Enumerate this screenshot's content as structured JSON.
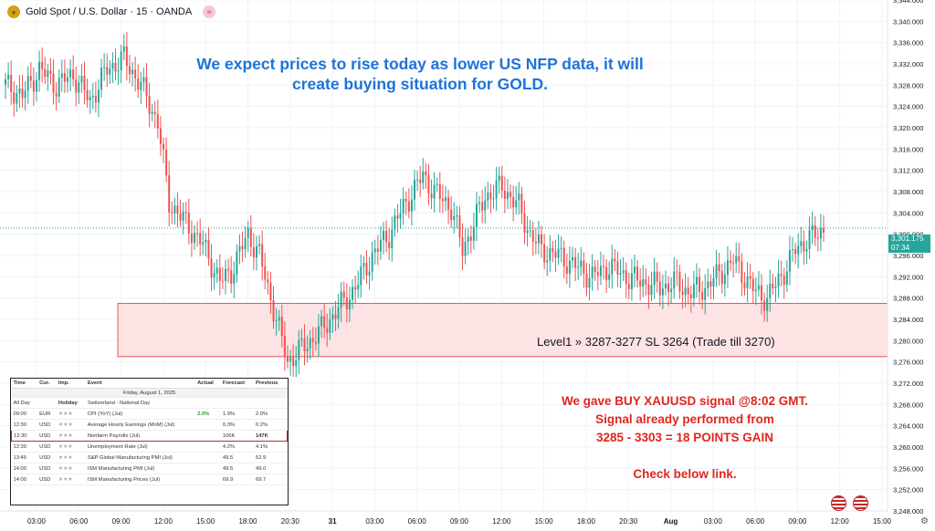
{
  "header": {
    "symbol_title": "Gold Spot / U.S. Dollar · 15 · OANDA",
    "coin_icon": "gold-coin-icon",
    "wave_icon": "wave-icon",
    "wave_glyph": "≈"
  },
  "annotations": {
    "headline_line1": "We expect prices to rise today as lower US NFP data, it will",
    "headline_line2": "create buying situation for GOLD.",
    "zone_label": "Level1 » 3287-3277 SL 3264 (Trade till 3270)",
    "signal_line1": "We gave BUY XAUUSD signal @8:02 GMT.",
    "signal_line2": "Signal already performed from",
    "signal_line3": "3285 - 3303 = 18 POINTS GAIN",
    "signal_line4": "Check below link.",
    "headline_color": "#1e73d8",
    "signal_color": "#e0261f"
  },
  "price_tag": {
    "price": "3,301.175",
    "countdown": "07:34",
    "color": "#26a69a"
  },
  "econ_calendar": {
    "headers": [
      "Time",
      "Cur.",
      "Imp.",
      "Event",
      "Actual",
      "Forecast",
      "Previous"
    ],
    "date": "Friday, August 1, 2025",
    "rows": [
      {
        "time": "All Day",
        "cur": "",
        "imp": "Holiday",
        "event": "Switzerland - National Day",
        "actual": "",
        "forecast": "",
        "previous": ""
      },
      {
        "time": "09:00",
        "cur": "EUR",
        "imp": "★★★",
        "event": "CPI (YoY) (Jul)",
        "actual": "2.0%",
        "forecast": "1.9%",
        "previous": "2.0%"
      },
      {
        "time": "12:30",
        "cur": "USD",
        "imp": "★★★",
        "event": "Average Hourly Earnings (MoM) (Jul)",
        "actual": "",
        "forecast": "0.3%",
        "previous": "0.2%"
      },
      {
        "time": "12:30",
        "cur": "USD",
        "imp": "★★★",
        "event": "Nonfarm Payrolls (Jul)",
        "actual": "",
        "forecast": "106K",
        "previous": "147K"
      },
      {
        "time": "12:30",
        "cur": "USD",
        "imp": "★★★",
        "event": "Unemployment Rate (Jul)",
        "actual": "",
        "forecast": "4.2%",
        "previous": "4.1%"
      },
      {
        "time": "13:45",
        "cur": "USD",
        "imp": "★★★",
        "event": "S&P Global Manufacturing PMI (Jul)",
        "actual": "",
        "forecast": "49.5",
        "previous": "52.9"
      },
      {
        "time": "14:00",
        "cur": "USD",
        "imp": "★★★",
        "event": "ISM Manufacturing PMI (Jul)",
        "actual": "",
        "forecast": "49.5",
        "previous": "49.0"
      },
      {
        "time": "14:00",
        "cur": "USD",
        "imp": "★★★",
        "event": "ISM Manufacturing Prices (Jul)",
        "actual": "",
        "forecast": "69.9",
        "previous": "69.7"
      }
    ],
    "highlight_row": 3
  },
  "icons": {
    "flag_icon": "us-flag-icon",
    "settings_icon": "gear-icon",
    "settings_glyph": "⚙"
  },
  "chart_data": {
    "type": "candlestick",
    "symbol": "XAUUSD",
    "timeframe": "15",
    "ylim": [
      3248,
      3344
    ],
    "y_ticks": [
      3248,
      3252,
      3256,
      3260,
      3264,
      3268,
      3272,
      3276,
      3280,
      3284,
      3288,
      3292,
      3296,
      3300,
      3304,
      3308,
      3312,
      3316,
      3320,
      3324,
      3328,
      3332,
      3336,
      3340,
      3344
    ],
    "x_ticks": [
      "03:00",
      "06:00",
      "09:00",
      "12:00",
      "15:00",
      "18:00",
      "20:30",
      "31",
      "03:00",
      "06:00",
      "09:00",
      "12:00",
      "15:00",
      "18:00",
      "20:30",
      "Aug",
      "03:00",
      "06:00",
      "09:00",
      "12:00",
      "15:00"
    ],
    "zone": {
      "top": 3287,
      "bottom": 3277,
      "label": "Level1 » 3287-3277 SL 3264 (Trade till 3270)"
    },
    "current_price": 3301.175,
    "colors": {
      "up": "#26a69a",
      "down": "#ef5350",
      "zone_fill": "#fde3e3",
      "zone_border": "#ef5350"
    },
    "anchors": [
      [
        0,
        3328
      ],
      [
        6,
        3326
      ],
      [
        12,
        3331
      ],
      [
        18,
        3328
      ],
      [
        24,
        3330
      ],
      [
        30,
        3325
      ],
      [
        36,
        3331
      ],
      [
        42,
        3333
      ],
      [
        48,
        3328
      ],
      [
        54,
        3321
      ],
      [
        58,
        3306
      ],
      [
        64,
        3302
      ],
      [
        70,
        3298
      ],
      [
        76,
        3291
      ],
      [
        80,
        3293
      ],
      [
        86,
        3300
      ],
      [
        90,
        3296
      ],
      [
        95,
        3286
      ],
      [
        100,
        3276
      ],
      [
        106,
        3279
      ],
      [
        112,
        3282
      ],
      [
        118,
        3286
      ],
      [
        124,
        3290
      ],
      [
        130,
        3296
      ],
      [
        136,
        3300
      ],
      [
        142,
        3306
      ],
      [
        148,
        3311
      ],
      [
        152,
        3308
      ],
      [
        158,
        3305
      ],
      [
        162,
        3297
      ],
      [
        166,
        3302
      ],
      [
        170,
        3307
      ],
      [
        176,
        3309
      ],
      [
        182,
        3305
      ],
      [
        186,
        3300
      ],
      [
        190,
        3297
      ],
      [
        196,
        3296
      ],
      [
        202,
        3294
      ],
      [
        208,
        3292
      ],
      [
        214,
        3294
      ],
      [
        220,
        3292
      ],
      [
        226,
        3291
      ],
      [
        232,
        3290
      ],
      [
        238,
        3291
      ],
      [
        242,
        3289
      ],
      [
        248,
        3290
      ],
      [
        254,
        3293
      ],
      [
        258,
        3295
      ],
      [
        262,
        3292
      ],
      [
        266,
        3289
      ],
      [
        270,
        3288
      ],
      [
        276,
        3293
      ],
      [
        280,
        3297
      ],
      [
        284,
        3299
      ],
      [
        288,
        3300
      ],
      [
        290,
        3301
      ]
    ]
  }
}
